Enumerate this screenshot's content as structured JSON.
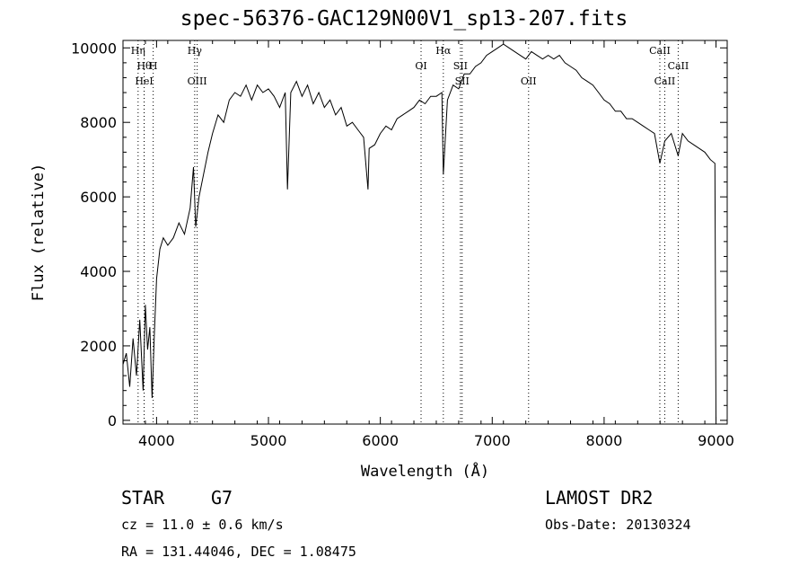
{
  "header": {
    "title": "spec-56376-GAC129N00V1_sp13-207.fits"
  },
  "info": {
    "object_type": "STAR",
    "subclass": "G7",
    "survey": "LAMOST DR2",
    "redshift": "cz = 11.0 ± 0.6 km/s",
    "obs_date": "Obs-Date: 20130324",
    "coords": "RA = 131.44046, DEC =   1.08475"
  },
  "chart_data": {
    "type": "line",
    "title": "spec-56376-GAC129N00V1_sp13-207.fits",
    "xlabel": "Wavelength (Å)",
    "ylabel": "Flux (relative)",
    "xlim": [
      3700,
      9100
    ],
    "ylim": [
      -100,
      10200
    ],
    "xticks": [
      4000,
      5000,
      6000,
      7000,
      8000,
      9000
    ],
    "yticks": [
      0,
      2000,
      4000,
      6000,
      8000,
      10000
    ],
    "grid": false,
    "series": [
      {
        "x": [
          3700,
          3730,
          3760,
          3790,
          3820,
          3850,
          3880,
          3900,
          3920,
          3940,
          3960,
          3980,
          4000,
          4030,
          4060,
          4100,
          4150,
          4200,
          4250,
          4300,
          4330,
          4350,
          4380,
          4420,
          4460,
          4500,
          4550,
          4600,
          4650,
          4700,
          4750,
          4800,
          4850,
          4900,
          4950,
          5000,
          5050,
          5100,
          5150,
          5170,
          5200,
          5250,
          5300,
          5350,
          5400,
          5450,
          5500,
          5550,
          5600,
          5650,
          5700,
          5750,
          5800,
          5850,
          5890,
          5900,
          5950,
          6000,
          6050,
          6100,
          6150,
          6200,
          6250,
          6300,
          6350,
          6400,
          6450,
          6500,
          6550,
          6563,
          6600,
          6650,
          6700,
          6750,
          6800,
          6850,
          6900,
          6950,
          7000,
          7050,
          7100,
          7150,
          7200,
          7250,
          7300,
          7350,
          7400,
          7450,
          7500,
          7550,
          7600,
          7650,
          7700,
          7750,
          7800,
          7850,
          7900,
          7950,
          8000,
          8050,
          8100,
          8150,
          8200,
          8250,
          8300,
          8350,
          8400,
          8450,
          8498,
          8542,
          8600,
          8662,
          8700,
          8750,
          8800,
          8850,
          8900,
          8950,
          8990,
          9000
        ],
        "y": [
          1500,
          1800,
          900,
          2200,
          1200,
          2700,
          800,
          3100,
          1900,
          2500,
          600,
          2300,
          3800,
          4600,
          4900,
          4700,
          4900,
          5300,
          5000,
          5700,
          6800,
          5200,
          6000,
          6600,
          7200,
          7700,
          8200,
          8000,
          8600,
          8800,
          8700,
          9000,
          8600,
          9000,
          8800,
          8900,
          8700,
          8400,
          8800,
          6200,
          8800,
          9100,
          8700,
          9000,
          8500,
          8800,
          8400,
          8600,
          8200,
          8400,
          7900,
          8000,
          7800,
          7600,
          6200,
          7300,
          7400,
          7700,
          7900,
          7800,
          8100,
          8200,
          8300,
          8400,
          8600,
          8500,
          8700,
          8700,
          8800,
          6600,
          8600,
          9000,
          8900,
          9300,
          9300,
          9500,
          9600,
          9800,
          9900,
          10000,
          10100,
          10000,
          9900,
          9800,
          9700,
          9900,
          9800,
          9700,
          9800,
          9700,
          9800,
          9600,
          9500,
          9400,
          9200,
          9100,
          9000,
          8800,
          8600,
          8500,
          8300,
          8300,
          8100,
          8100,
          8000,
          7900,
          7800,
          7700,
          6900,
          7500,
          7700,
          7100,
          7700,
          7500,
          7400,
          7300,
          7200,
          7000,
          6900,
          0
        ]
      }
    ],
    "lines": [
      {
        "label": "Hη",
        "x": 3835,
        "row": 0
      },
      {
        "label": "Hθ",
        "x": 3889,
        "row": 1
      },
      {
        "label": "H",
        "x": 3970,
        "row": 1
      },
      {
        "label": "HeI",
        "x": 3889,
        "row": 2
      },
      {
        "label": "Hγ",
        "x": 4341,
        "row": 0
      },
      {
        "label": "OIII",
        "x": 4363,
        "row": 2
      },
      {
        "label": "OI",
        "x": 6364,
        "row": 1
      },
      {
        "label": "Hα",
        "x": 6563,
        "row": 0
      },
      {
        "label": "SII",
        "x": 6716,
        "row": 1
      },
      {
        "label": "SII",
        "x": 6731,
        "row": 2
      },
      {
        "label": "OII",
        "x": 7325,
        "row": 2
      },
      {
        "label": "CaII",
        "x": 8498,
        "row": 0
      },
      {
        "label": "CaII",
        "x": 8662,
        "row": 1
      },
      {
        "label": "CaII",
        "x": 8542,
        "row": 2
      }
    ]
  }
}
